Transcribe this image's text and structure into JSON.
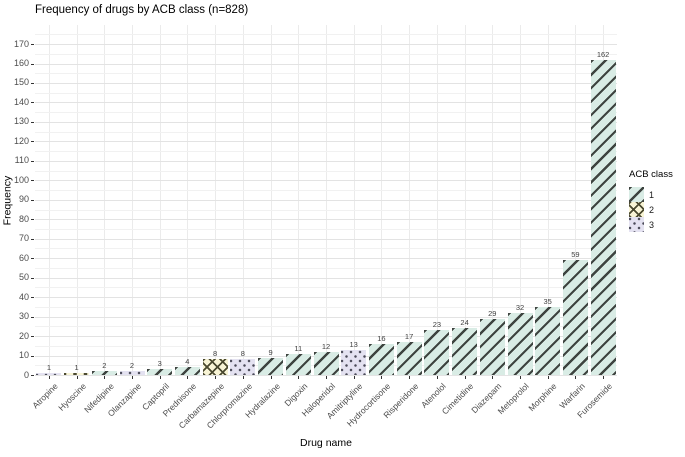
{
  "title": "Frequency of drugs by ACB class (n=828)",
  "chart_data": {
    "type": "bar",
    "title": "Frequency of drugs by ACB class (n=828)",
    "xlabel": "Drug name",
    "ylabel": "Frequency",
    "ylim": [
      0,
      175
    ],
    "yticks": [
      0,
      10,
      20,
      30,
      40,
      50,
      60,
      70,
      80,
      90,
      100,
      110,
      120,
      130,
      140,
      150,
      160,
      170
    ],
    "grid": true,
    "categories": [
      "Atropine",
      "Hyoscine",
      "Nifedipine",
      "Olanzapine",
      "Captopril",
      "Prednisone",
      "Carbamazepine",
      "Chlorpromazine",
      "Hydralazine",
      "Digoxin",
      "Haloperidol",
      "Amitriptyline",
      "Hydrocortisone",
      "Risperidone",
      "Atenolol",
      "Cimetidine",
      "Diazepam",
      "Metoprolol",
      "Morphine",
      "Warfarin",
      "Furosemide"
    ],
    "values": [
      1,
      1,
      2,
      2,
      3,
      4,
      8,
      8,
      9,
      11,
      12,
      13,
      16,
      17,
      23,
      24,
      29,
      32,
      35,
      59,
      162
    ],
    "acb_classes": [
      3,
      2,
      1,
      3,
      1,
      1,
      2,
      3,
      1,
      1,
      1,
      3,
      1,
      1,
      1,
      1,
      1,
      1,
      1,
      1,
      1
    ],
    "legend": {
      "title": "ACB class",
      "position": "right",
      "entries": [
        {
          "label": "1",
          "pattern": "diagonal-stripes",
          "fill": "#d9ece5",
          "stroke": "#3e4440"
        },
        {
          "label": "2",
          "pattern": "crosshatch",
          "fill": "#f8f4d5",
          "stroke": "#4a4930"
        },
        {
          "label": "3",
          "pattern": "dots",
          "fill": "#e4e2f1",
          "stroke": "#4b4b59"
        }
      ]
    }
  }
}
